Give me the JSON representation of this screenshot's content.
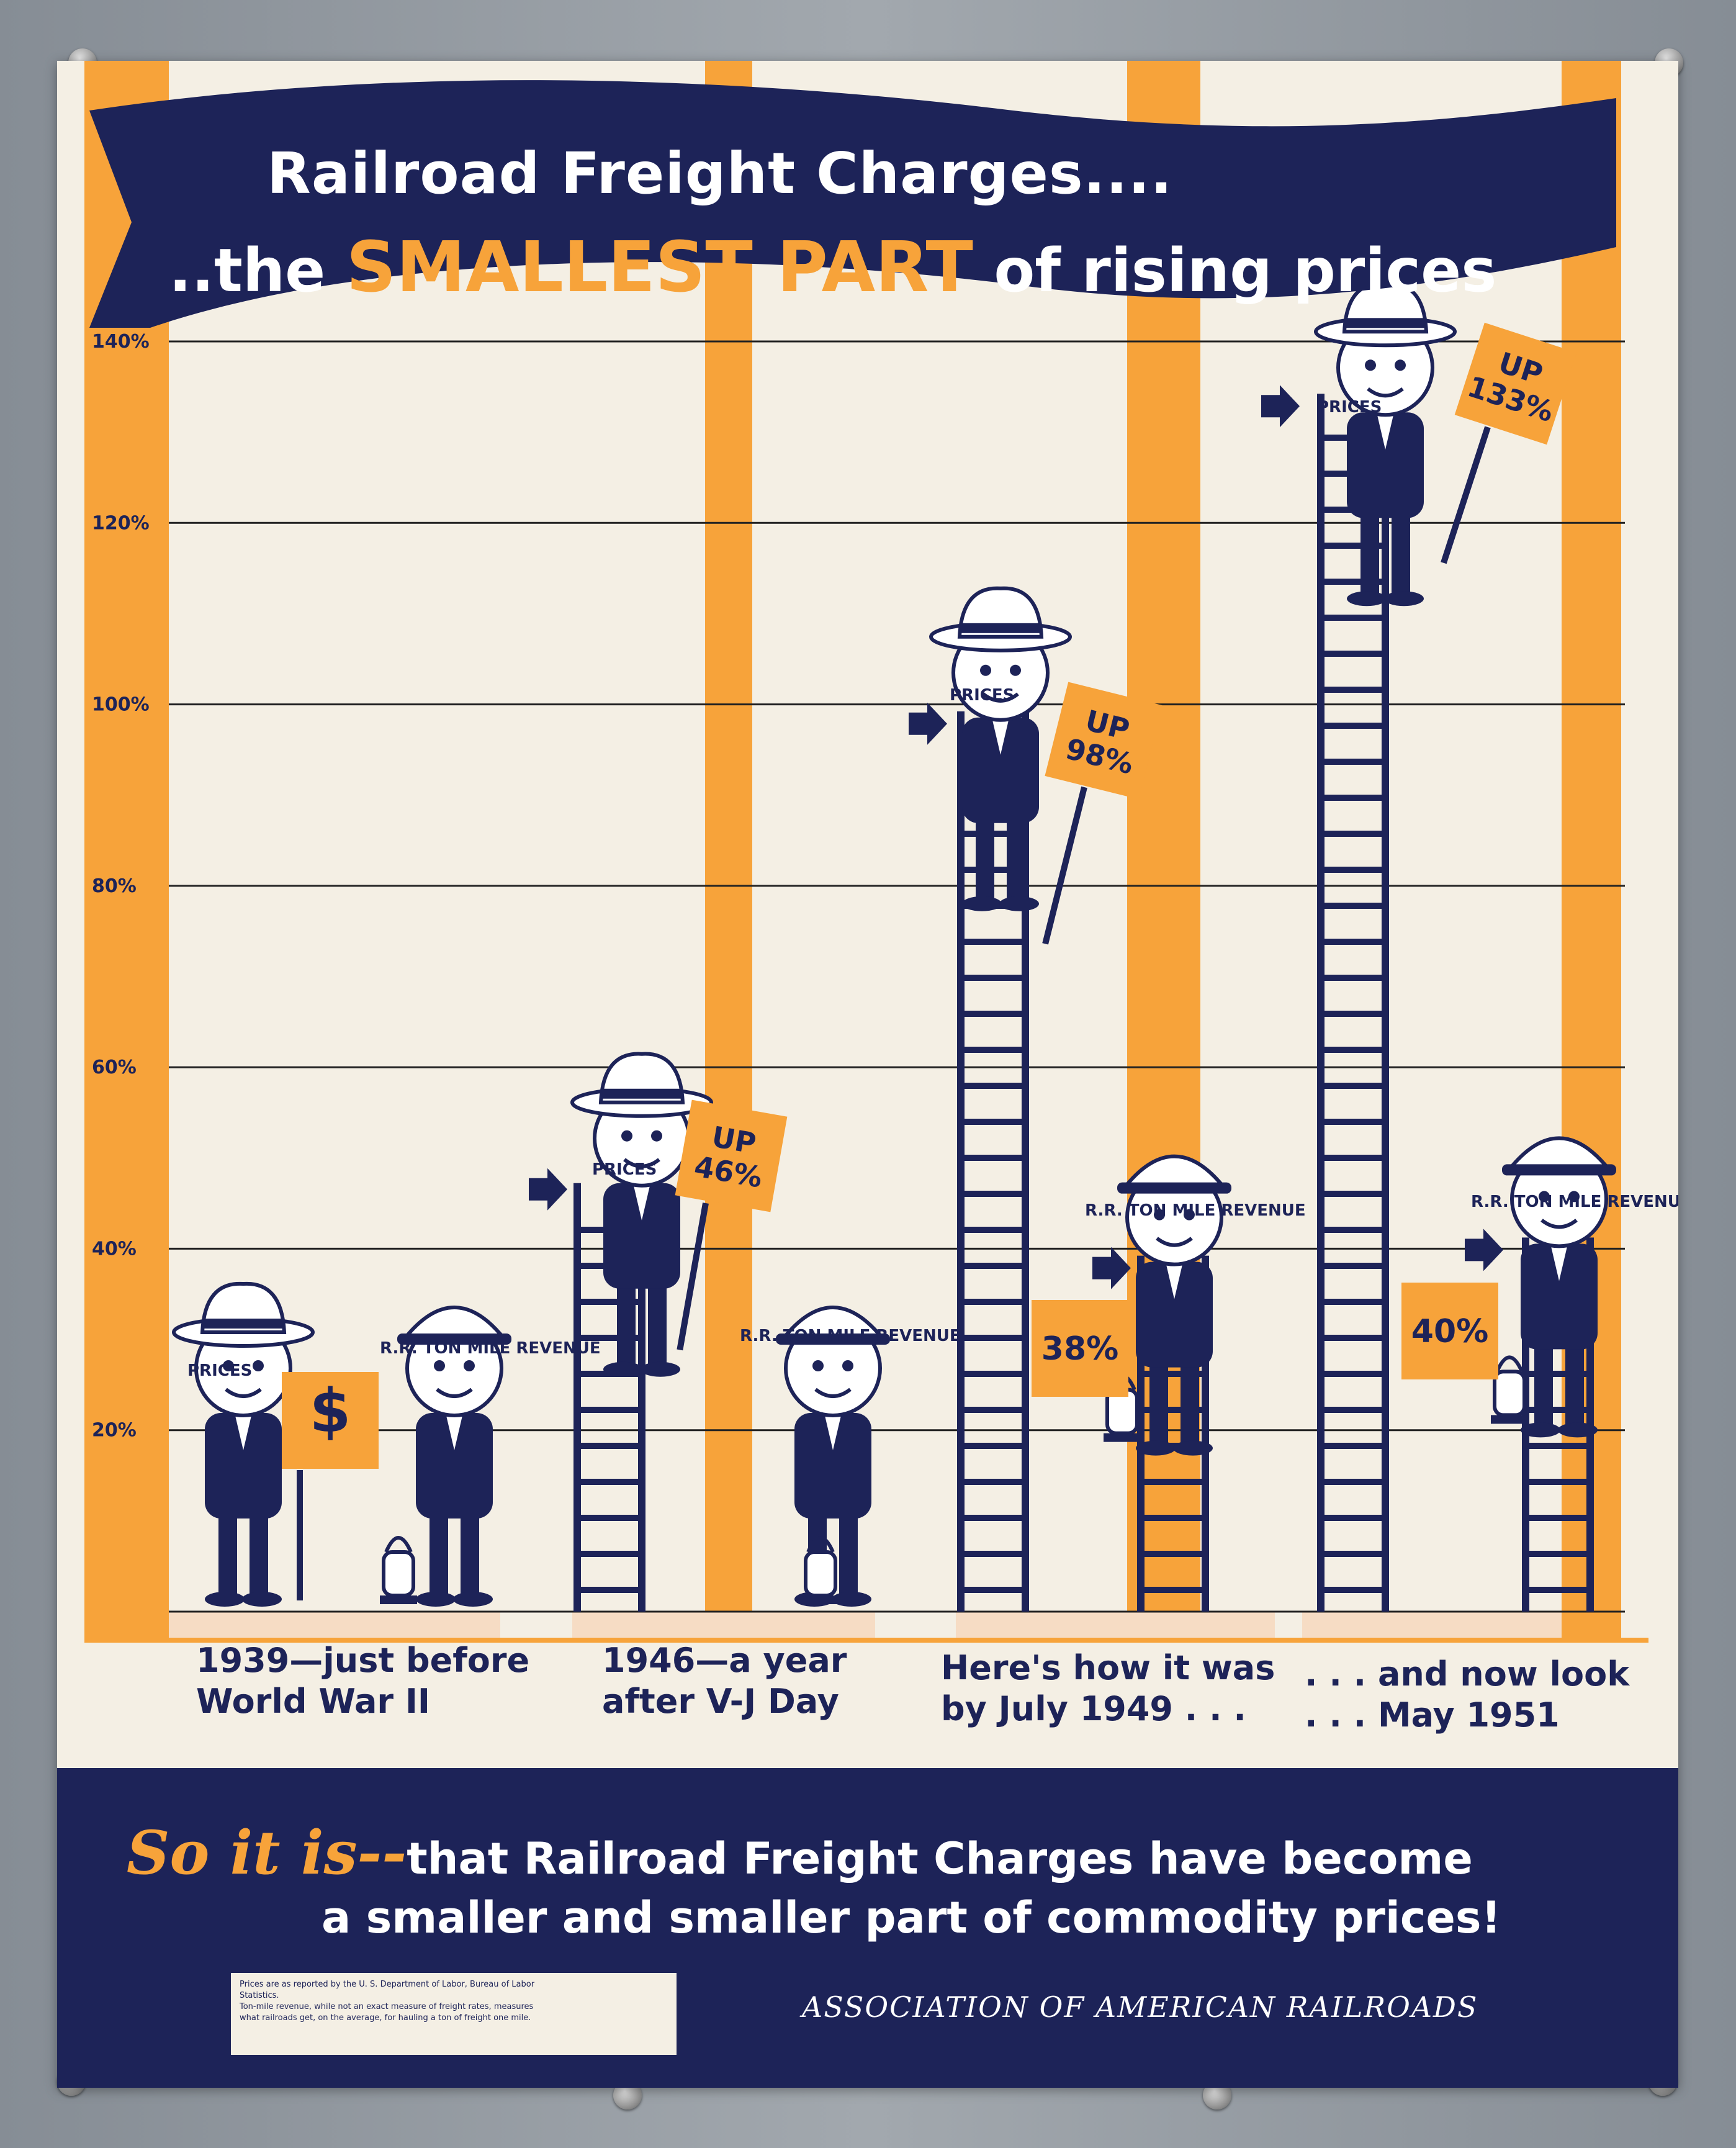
{
  "poster": {
    "title_line1": "Railroad Freight Charges....",
    "title_line2_pre": "..the",
    "title_line2_highlight": "SMALLEST PART",
    "title_line2_post": "of rising prices",
    "footer_script": "So it is--",
    "footer_line1": "that Railroad Freight Charges have become",
    "footer_line2": "a smaller and smaller part of commodity prices!",
    "note_lines": [
      "Prices are as reported by the U. S. Department of Labor, Bureau of Labor",
      "Statistics.",
      "Ton-mile revenue, while not an exact measure of freight rates, measures",
      "what railroads get, on the average, for hauling a ton of freight one mile."
    ],
    "association": "ASSOCIATION OF AMERICAN RAILROADS",
    "colors": {
      "navy": "#1d2358",
      "orange": "#f7a33a",
      "paper": "#f4efe4",
      "label_band": "#f6dcc4"
    }
  },
  "chart_data": {
    "type": "bar",
    "yticks": [
      "20%",
      "40%",
      "60%",
      "80%",
      "100%",
      "120%",
      "140%"
    ],
    "ylim": [
      0,
      140
    ],
    "grid": true,
    "categories": [
      "1939—just before World War II",
      "1946—a year after V-J Day",
      "Here's how it was by July 1949 . . .",
      ". . . and now look . . . May 1951"
    ],
    "category_lines": [
      [
        "1939—just before",
        "World War II"
      ],
      [
        "1946—a year",
        "after V-J Day"
      ],
      [
        "Here's how it was",
        "by July 1949 . . ."
      ],
      [
        ". . . and now look",
        ". . . May 1951"
      ]
    ],
    "series": [
      {
        "name": "PRICES",
        "values": [
          0,
          46,
          98,
          133
        ],
        "labels": [
          "$",
          "UP 46%",
          "UP 98%",
          "UP 133%"
        ]
      },
      {
        "name": "R.R. TON MILE REVENUE",
        "values": [
          0,
          0,
          38,
          40
        ],
        "labels": [
          "",
          "",
          "38%",
          "40%"
        ]
      }
    ]
  }
}
